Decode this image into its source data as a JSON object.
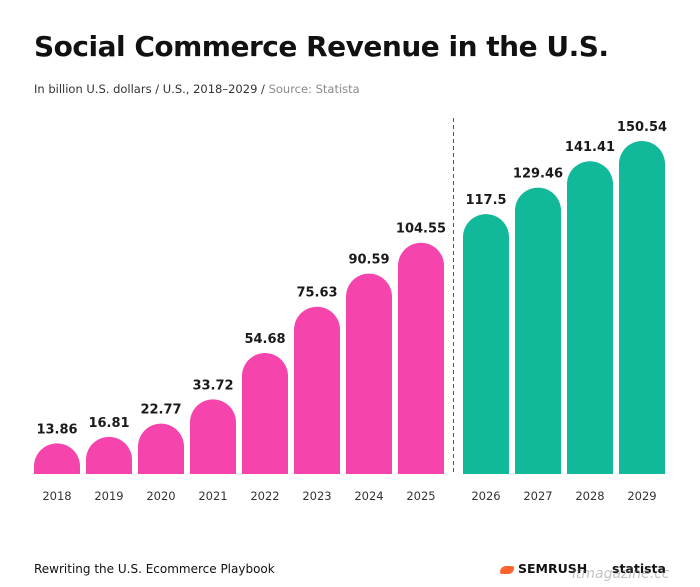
{
  "header": {
    "title": "Social Commerce Revenue in the U.S.",
    "subtitle": "In billion U.S. dollars / U.S., 2018–2029 /",
    "source": "Source: Statista"
  },
  "footer": {
    "tagline": "Rewriting the U.S. Ecommerce Playbook",
    "brand_semrush": "SEMRUSH",
    "brand_statista": "statista",
    "watermark": "itmagazine.cc"
  },
  "colors": {
    "actual": "#f545ad",
    "forecast": "#12b89a"
  },
  "chart_data": {
    "type": "bar",
    "title": "Social Commerce Revenue in the U.S.",
    "xlabel": "",
    "ylabel": "In billion U.S. dollars",
    "ylim": [
      0,
      155
    ],
    "categories": [
      "2018",
      "2019",
      "2020",
      "2021",
      "2022",
      "2023",
      "2024",
      "2025",
      "2026",
      "2027",
      "2028",
      "2029"
    ],
    "values": [
      13.86,
      16.81,
      22.77,
      33.72,
      54.68,
      75.63,
      90.59,
      104.55,
      117.5,
      129.46,
      141.41,
      150.54
    ],
    "labels": [
      "13.86",
      "16.81",
      "22.77",
      "33.72",
      "54.68",
      "75.63",
      "90.59",
      "104.55",
      "117.5",
      "129.46",
      "141.41",
      "150.54"
    ],
    "forecast_start": "2026",
    "grid": false,
    "legend": "none"
  }
}
